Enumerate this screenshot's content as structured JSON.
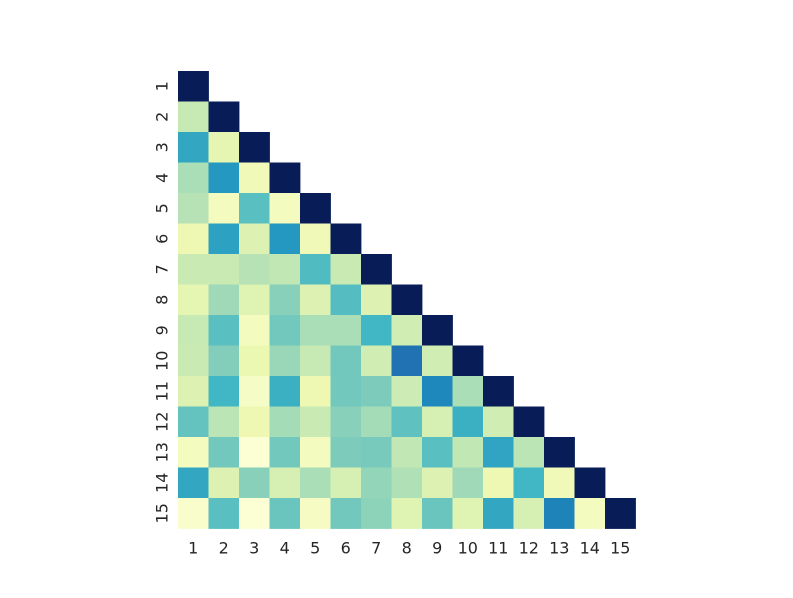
{
  "chart_data": {
    "type": "heatmap",
    "colormap": "YlGnBu",
    "value_range": [
      0,
      1
    ],
    "mask": "upper-triangle",
    "x_tick_labels": [
      "1",
      "2",
      "3",
      "4",
      "5",
      "6",
      "7",
      "8",
      "9",
      "10",
      "11",
      "12",
      "13",
      "14",
      "15"
    ],
    "y_tick_labels": [
      "1",
      "2",
      "3",
      "4",
      "5",
      "6",
      "7",
      "8",
      "9",
      "10",
      "11",
      "12",
      "13",
      "14",
      "15"
    ],
    "values": [
      [
        1.0
      ],
      [
        0.25,
        1.0
      ],
      [
        0.55,
        0.15,
        1.0
      ],
      [
        0.3,
        0.6,
        0.1,
        1.0
      ],
      [
        0.28,
        0.08,
        0.45,
        0.08,
        1.0
      ],
      [
        0.12,
        0.57,
        0.18,
        0.6,
        0.1,
        1.0
      ],
      [
        0.24,
        0.24,
        0.28,
        0.26,
        0.47,
        0.24,
        1.0
      ],
      [
        0.15,
        0.32,
        0.17,
        0.36,
        0.18,
        0.46,
        0.18,
        1.0
      ],
      [
        0.25,
        0.45,
        0.08,
        0.4,
        0.3,
        0.3,
        0.5,
        0.22,
        1.0
      ],
      [
        0.24,
        0.37,
        0.13,
        0.33,
        0.25,
        0.4,
        0.22,
        0.7,
        0.22,
        1.0
      ],
      [
        0.18,
        0.5,
        0.06,
        0.52,
        0.12,
        0.4,
        0.38,
        0.23,
        0.65,
        0.3,
        1.0
      ],
      [
        0.43,
        0.27,
        0.12,
        0.31,
        0.24,
        0.36,
        0.31,
        0.44,
        0.2,
        0.52,
        0.22,
        1.0
      ],
      [
        0.08,
        0.4,
        0.02,
        0.4,
        0.08,
        0.38,
        0.39,
        0.26,
        0.45,
        0.26,
        0.56,
        0.27,
        1.0
      ],
      [
        0.55,
        0.18,
        0.36,
        0.2,
        0.3,
        0.2,
        0.34,
        0.29,
        0.18,
        0.32,
        0.12,
        0.5,
        0.1,
        1.0
      ],
      [
        0.04,
        0.45,
        0.02,
        0.42,
        0.07,
        0.4,
        0.35,
        0.17,
        0.42,
        0.17,
        0.55,
        0.2,
        0.66,
        0.08,
        1.0
      ]
    ]
  }
}
